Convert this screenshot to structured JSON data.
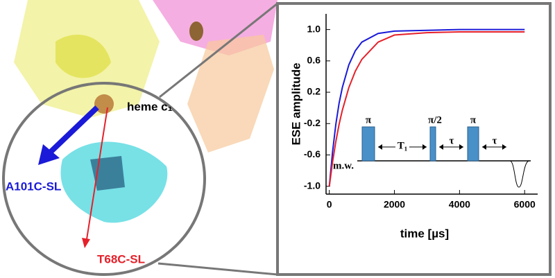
{
  "figure_labels": {
    "heme": "heme c₁",
    "site_a": "A101C-SL",
    "site_b": "T68C-SL"
  },
  "chart_data": {
    "type": "line",
    "y_label": "ESE amplitude",
    "x_label": "time [µs]",
    "x": [
      0,
      100,
      200,
      300,
      400,
      600,
      800,
      1000,
      1500,
      2000,
      3000,
      4000,
      5000,
      6000
    ],
    "series": [
      {
        "name": "A101C-SL",
        "color": "#1a1ad8",
        "values": [
          -1.0,
          -0.56,
          -0.21,
          0.06,
          0.26,
          0.55,
          0.73,
          0.84,
          0.95,
          0.98,
          0.99,
          1.0,
          1.0,
          1.0
        ]
      },
      {
        "name": "T68C-SL",
        "color": "#e5202a",
        "values": [
          -1.0,
          -0.69,
          -0.43,
          -0.21,
          -0.03,
          0.26,
          0.47,
          0.62,
          0.84,
          0.93,
          0.96,
          0.97,
          0.97,
          0.97
        ]
      }
    ],
    "xlim": [
      -100,
      6400
    ],
    "ylim": [
      -1.1,
      1.2
    ],
    "xticks": [
      0,
      2000,
      4000,
      6000
    ],
    "yticks": [
      {
        "value": -1,
        "label": "-1.0"
      },
      -0.6,
      -0.2,
      0.2,
      0.6,
      {
        "value": 1,
        "label": "1.0"
      }
    ],
    "inset_labels": {
      "channel": "m.w.",
      "pulse_1": "π",
      "delay_1": "T₁",
      "pulse_2": "π/2",
      "delay_2": "τ",
      "pulse_3": "π",
      "delay_3": "τ"
    }
  }
}
